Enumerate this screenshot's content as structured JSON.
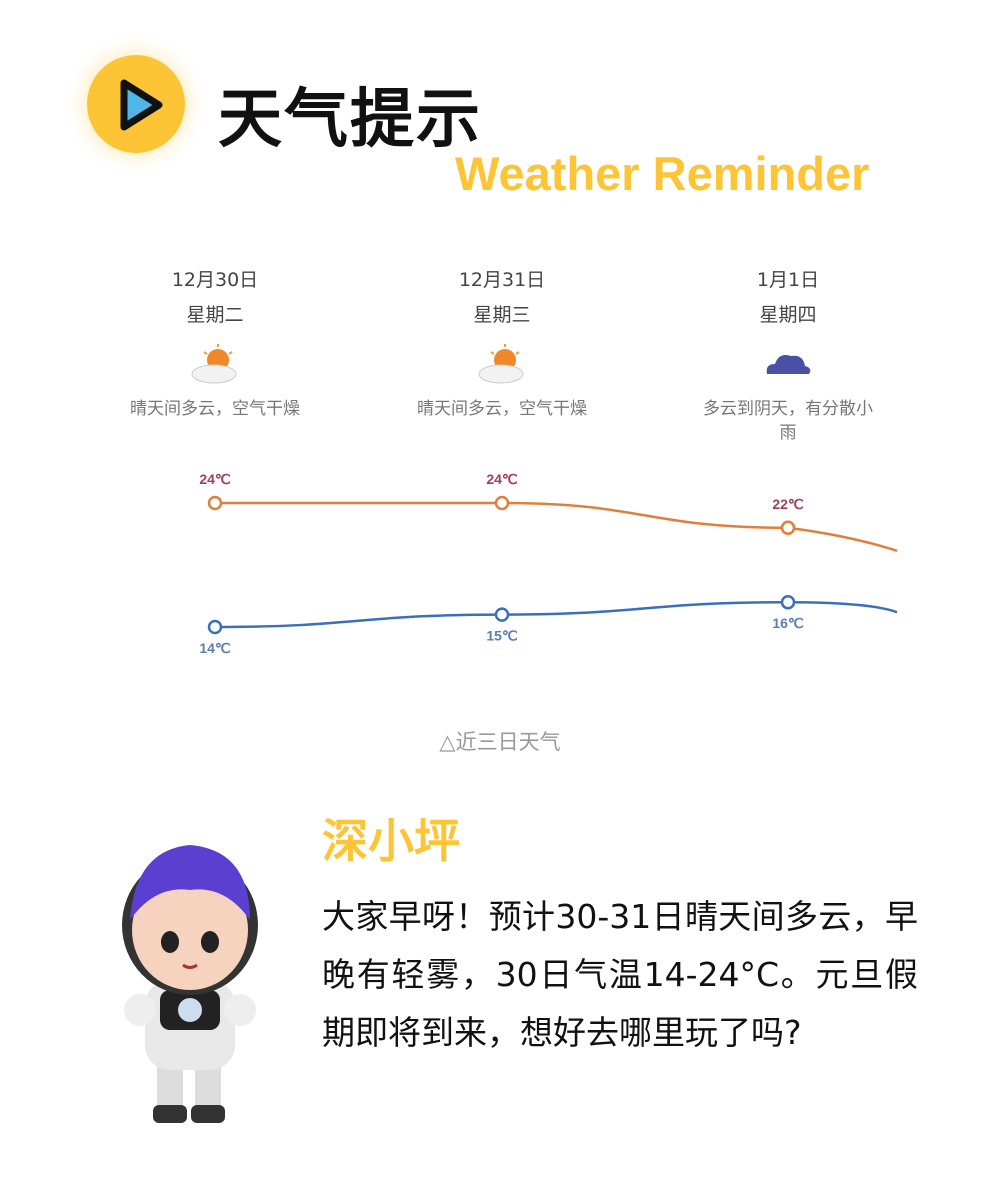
{
  "header": {
    "title": "天气提示",
    "subtitle": "Weather Reminder",
    "logo_icon": "play-icon"
  },
  "days": [
    {
      "date": "12月30日",
      "weekday": "星期二",
      "icon": "sun-cloud-icon",
      "desc": "晴天间多云，空气干燥"
    },
    {
      "date": "12月31日",
      "weekday": "星期三",
      "icon": "sun-cloud-icon",
      "desc": "晴天间多云，空气干燥"
    },
    {
      "date": "1月1日",
      "weekday": "星期四",
      "icon": "cloud-icon",
      "desc": "多云到阴天，有分散小雨"
    }
  ],
  "chart_data": {
    "type": "line",
    "categories": [
      "12月30日",
      "12月31日",
      "1月1日"
    ],
    "series": [
      {
        "values": [
          24,
          24,
          22
        ],
        "labels": [
          "24℃",
          "24℃",
          "22℃"
        ],
        "color": "#e07f3c",
        "label_color": "#a03e5c"
      },
      {
        "values": [
          14,
          15,
          16
        ],
        "labels": [
          "14℃",
          "15℃",
          "16℃"
        ],
        "color": "#3a6fba",
        "label_color": "#5a7fb0"
      }
    ]
  },
  "caption": "△近三日天气",
  "mascot": {
    "name": "深小坪"
  },
  "message": "大家早呀！预计30-31日晴天间多云，早晚有轻雾，30日气温14-24°C。元旦假期即将到来，想好去哪里玩了吗?"
}
